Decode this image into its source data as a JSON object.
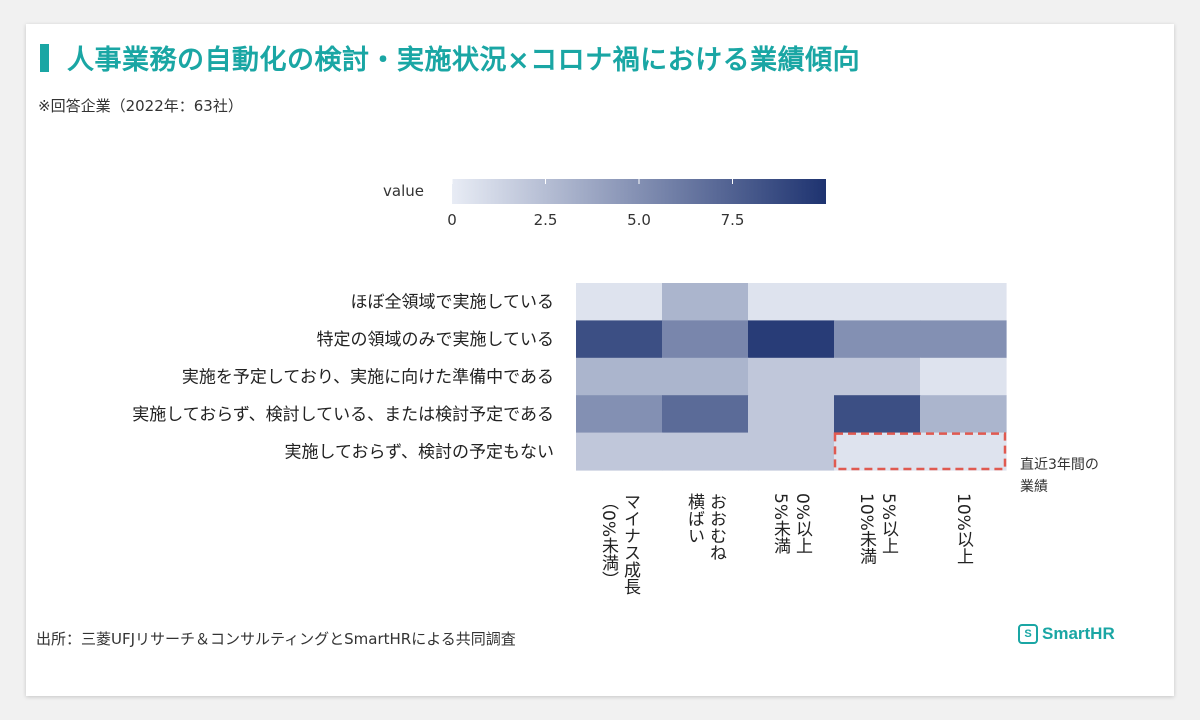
{
  "title": "人事業務の自動化の検討・実施状況×コロナ禍における業績傾向",
  "subtitle": "※回答企業（2022年：63社）",
  "source": "出所：三菱UFJリサーチ＆コンサルティングとSmartHRによる共同調査",
  "logo": "SmartHR",
  "logo_mark": "S",
  "colors": {
    "title": "#1aa6a4",
    "low": "#e8ecf5",
    "high": "#1e3370",
    "highlight": "#e05a50"
  },
  "chart_data": {
    "type": "heatmap",
    "colorbar": {
      "label": "value",
      "ticks": [
        0,
        2.5,
        5.0,
        7.5
      ],
      "tick_labels": [
        "0",
        "2.5",
        "5.0",
        "7.5"
      ],
      "range": [
        0,
        10
      ]
    },
    "rows": [
      "ほぼ全領域で実施している",
      "特定の領域のみで実施している",
      "実施を予定しており、実施に向けた準備中である",
      "実施しておらず、検討している、または検討予定である",
      "実施しておらず、検討の予定もない"
    ],
    "columns": [
      "マイナス成長（0%未満）",
      "おおむね横ばい",
      "0%以上5%未満",
      "5%以上10%未満",
      "10%以上"
    ],
    "column_lines": [
      [
        "マイナス成長",
        "（0%未満）"
      ],
      [
        "おおむね",
        "横ばい"
      ],
      [
        "0%以上",
        "5%未満"
      ],
      [
        "5%以上",
        "10%未満"
      ],
      [
        "10%以上"
      ]
    ],
    "values": [
      [
        0.5,
        3.0,
        0.5,
        0.5,
        0.5
      ],
      [
        8.5,
        5.5,
        9.5,
        5.0,
        5.0
      ],
      [
        3.0,
        3.0,
        2.0,
        2.0,
        0.5
      ],
      [
        5.0,
        7.0,
        2.0,
        8.5,
        3.0
      ],
      [
        2.0,
        2.0,
        2.0,
        0.5,
        0.5
      ]
    ],
    "highlight": {
      "row": 4,
      "cols": [
        3,
        4
      ]
    },
    "annotation": [
      "直近3年間の",
      "業績"
    ]
  }
}
